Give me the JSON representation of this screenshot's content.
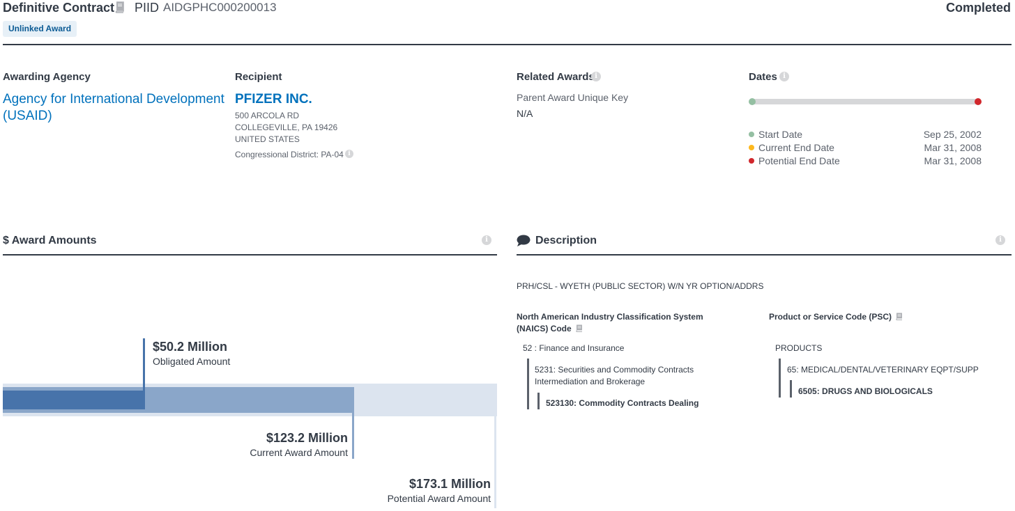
{
  "header": {
    "title": "Definitive Contract",
    "piid_label": "PIID",
    "piid": "AIDGPHC000200013",
    "status": "Completed",
    "badge": "Unlinked Award"
  },
  "awarding_agency": {
    "label": "Awarding Agency",
    "name": "Agency for International Development (USAID)"
  },
  "recipient": {
    "label": "Recipient",
    "name": "PFIZER INC.",
    "address_lines": [
      "500 ARCOLA RD",
      "COLLEGEVILLE, PA 19426",
      "UNITED STATES"
    ],
    "district": "Congressional District: PA-04"
  },
  "related_awards": {
    "label": "Related Awards",
    "parent_label": "Parent Award Unique Key",
    "parent_value": "N/A"
  },
  "dates": {
    "label": "Dates",
    "items": [
      {
        "label": "Start Date",
        "value": "Sep 25, 2002",
        "color": "#94bfa2"
      },
      {
        "label": "Current End Date",
        "value": "Mar 31, 2008",
        "color": "#fdb81e"
      },
      {
        "label": "Potential End Date",
        "value": "Mar 31, 2008",
        "color": "#d1272c"
      }
    ]
  },
  "award_amounts": {
    "label": "$ Award Amounts",
    "obligated": {
      "value": "$50.2 Million",
      "label": "Obligated Amount",
      "color": "#4773aa"
    },
    "current": {
      "value": "$123.2 Million",
      "label": "Current Award Amount",
      "color": "#8aa6c9"
    },
    "potential": {
      "value": "$173.1 Million",
      "label": "Potential Award Amount",
      "color": "#dce4ef"
    }
  },
  "description": {
    "label": "Description",
    "text": "PRH/CSL - WYETH (PUBLIC SECTOR) W/N YR OPTION/ADDRS",
    "naics": {
      "heading_line1": "North American Industry Classification System",
      "heading_line2": "(NAICS)  Code",
      "level1": "52 : Finance and Insurance",
      "level2_line1": "5231: Securities and Commodity Contracts",
      "level2_line2": "Intermediation and Brokerage",
      "level3": "523130: Commodity Contracts Dealing"
    },
    "psc": {
      "heading": "Product or Service Code  (PSC)",
      "level1": "PRODUCTS",
      "level2": "65: MEDICAL/DENTAL/VETERINARY EQPT/SUPP",
      "level3": "6505: DRUGS AND BIOLOGICALS"
    }
  },
  "icons": {
    "info": "info-icon",
    "glossary": "book-icon",
    "description": "speech-bubble-icon"
  }
}
